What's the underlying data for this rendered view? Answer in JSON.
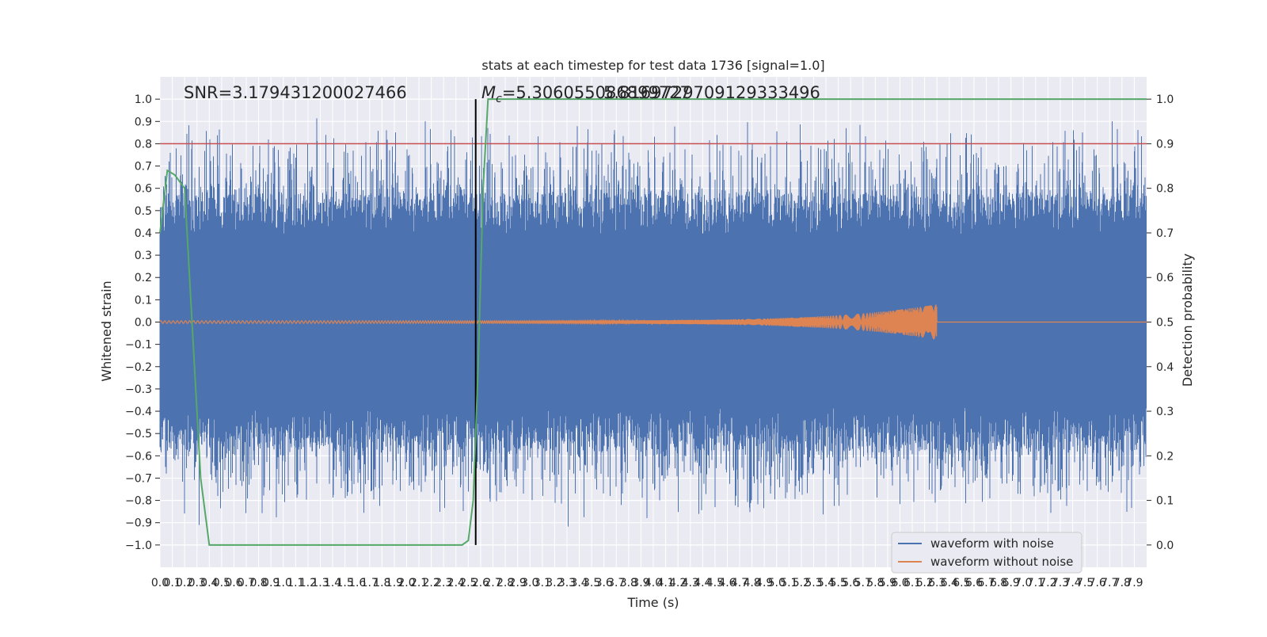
{
  "chart_data": {
    "type": "line",
    "title": "stats at each timestep for test data 1736 [signal=1.0]",
    "xlabel": "Time (s)",
    "ylabel": "Whitened strain",
    "y2label": "Detection probability",
    "xlim": [
      0.0,
      8.0
    ],
    "ylim": [
      -1.1,
      1.1
    ],
    "y2lim": [
      -0.05,
      1.05
    ],
    "x_ticks": [
      "0.0",
      "0.1",
      "0.2",
      "0.3",
      "0.4",
      "0.5",
      "0.6",
      "0.7",
      "0.8",
      "0.9",
      "1.0",
      "1.1",
      "1.2",
      "1.3",
      "1.4",
      "1.5",
      "1.6",
      "1.7",
      "1.8",
      "1.9",
      "2.0",
      "2.1",
      "2.2",
      "2.3",
      "2.4",
      "2.5",
      "2.6",
      "2.7",
      "2.8",
      "2.9",
      "3.0",
      "3.1",
      "3.2",
      "3.3",
      "3.4",
      "3.5",
      "3.6",
      "3.7",
      "3.8",
      "3.9",
      "4.0",
      "4.1",
      "4.2",
      "4.3",
      "4.4",
      "4.5",
      "4.6",
      "4.7",
      "4.8",
      "4.9",
      "5.0",
      "5.1",
      "5.2",
      "5.3",
      "5.4",
      "5.5",
      "5.6",
      "5.7",
      "5.8",
      "5.9",
      "6.0",
      "6.1",
      "6.2",
      "6.3",
      "6.4",
      "6.5",
      "6.6",
      "6.7",
      "6.8",
      "6.9",
      "7.0",
      "7.1",
      "7.2",
      "7.3",
      "7.4",
      "7.5",
      "7.6",
      "7.7",
      "7.8",
      "7.9"
    ],
    "y_ticks": [
      "1.0",
      "0.9",
      "0.8",
      "0.7",
      "0.6",
      "0.5",
      "0.4",
      "0.3",
      "0.2",
      "0.1",
      "0.0",
      "−0.1",
      "−0.2",
      "−0.3",
      "−0.4",
      "−0.5",
      "−0.6",
      "−0.7",
      "−0.8",
      "−0.9",
      "−1.0"
    ],
    "y2_ticks": [
      "1.0",
      "0.9",
      "0.8",
      "0.7",
      "0.6",
      "0.5",
      "0.4",
      "0.3",
      "0.2",
      "0.1",
      "0.0"
    ],
    "annotations": {
      "snr": "SNR=3.179431200027466",
      "mc_symbol": "M",
      "mc_sub": "c",
      "mc_value": "=5.306055086899727",
      "mc_overlap": "5.8169729709129333496"
    },
    "threshold_line": {
      "y2": 0.9,
      "color": "#c44e52"
    },
    "vertical_marker": {
      "x": 2.56,
      "y_range": [
        -1.0,
        1.0
      ],
      "color": "#000000"
    },
    "series": [
      {
        "name": "waveform with noise",
        "color": "#4c72b0",
        "description_envelope": {
          "core_abs": 0.38,
          "typical_peak": 0.6,
          "max_peak": 1.0
        }
      },
      {
        "name": "waveform without noise",
        "color": "#dd8452",
        "chirp": {
          "start_amp": 0.006,
          "end_x": 6.3,
          "peak_amp": 0.08
        }
      },
      {
        "name": "detection probability",
        "color": "#55a868",
        "axis": "right",
        "x": [
          0.0,
          0.06,
          0.12,
          0.2,
          0.26,
          0.33,
          0.4,
          0.5,
          1.0,
          1.5,
          2.0,
          2.3,
          2.45,
          2.5,
          2.54,
          2.58,
          2.62,
          2.66,
          2.7,
          3.0,
          4.0,
          5.0,
          6.0,
          7.0,
          8.0
        ],
        "values": [
          0.7,
          0.84,
          0.83,
          0.8,
          0.5,
          0.15,
          0.0,
          0.0,
          0.0,
          0.0,
          0.0,
          0.0,
          0.0,
          0.01,
          0.1,
          0.4,
          0.8,
          1.0,
          1.0,
          1.0,
          1.0,
          1.0,
          1.0,
          1.0,
          1.0
        ]
      }
    ],
    "legend": {
      "placement": "lower-right",
      "entries": [
        {
          "label": "waveform with noise",
          "color": "#4c72b0"
        },
        {
          "label": "waveform without noise",
          "color": "#dd8452"
        }
      ]
    },
    "grid": true,
    "background": "#eaeaf2"
  }
}
